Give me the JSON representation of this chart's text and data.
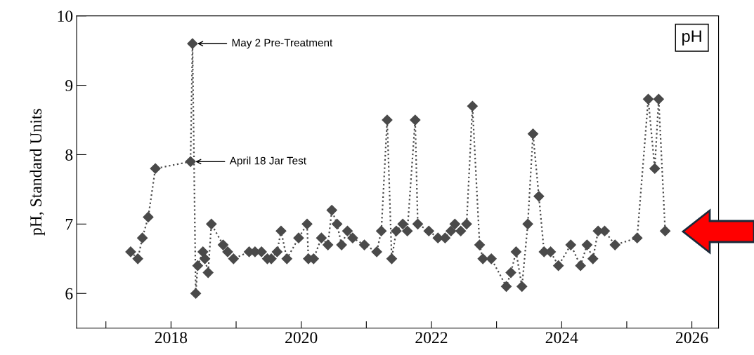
{
  "chart_data": {
    "type": "line",
    "ylabel": "pH, Standard Units",
    "annotations": [
      {
        "text": "May 2 Pre-Treatment",
        "x": 2018.33,
        "y": 9.6
      },
      {
        "text": "April 18 Jar Test",
        "x": 2018.3,
        "y": 7.9
      },
      "pH"
    ],
    "series": [
      {
        "color": "#4a4a4a",
        "x": [
          2017.38,
          2017.49,
          2017.56,
          2017.65,
          2017.76,
          2018.3,
          2018.33,
          2018.38,
          2018.41,
          2018.49,
          2018.52,
          2018.57,
          2018.62,
          2018.8,
          2018.87,
          2018.96,
          2019.2,
          2019.29,
          2019.39,
          2019.48,
          2019.54,
          2019.63,
          2019.69,
          2019.78,
          2019.96,
          2020.09,
          2020.11,
          2020.19,
          2020.31,
          2020.41,
          2020.47,
          2020.55,
          2020.62,
          2020.71,
          2020.79,
          2020.97,
          2021.16,
          2021.23,
          2021.32,
          2021.39,
          2021.46,
          2021.56,
          2021.63,
          2021.75,
          2021.79,
          2021.96,
          2022.1,
          2022.21,
          2022.3,
          2022.36,
          2022.45,
          2022.54,
          2022.63,
          2022.74,
          2022.79,
          2022.92,
          2023.15,
          2023.22,
          2023.3,
          2023.39,
          2023.48,
          2023.56,
          2023.65,
          2023.73,
          2023.83,
          2023.95,
          2024.14,
          2024.29,
          2024.39,
          2024.48,
          2024.56,
          2024.66,
          2024.82,
          2025.16,
          2025.33,
          2025.43,
          2025.49,
          2025.59
        ],
        "values": [
          6.6,
          6.5,
          6.8,
          7.1,
          7.8,
          7.9,
          9.6,
          6.0,
          6.4,
          6.6,
          6.5,
          6.3,
          7.0,
          6.7,
          6.6,
          6.5,
          6.6,
          6.6,
          6.6,
          6.5,
          6.5,
          6.6,
          6.9,
          6.5,
          6.8,
          7.0,
          6.5,
          6.5,
          6.8,
          6.7,
          7.2,
          7.0,
          6.7,
          6.9,
          6.8,
          6.7,
          6.6,
          6.9,
          8.5,
          6.5,
          6.9,
          7.0,
          6.9,
          8.5,
          7.0,
          6.9,
          6.8,
          6.8,
          6.9,
          7.0,
          6.9,
          7.0,
          8.7,
          6.7,
          6.5,
          6.5,
          6.1,
          6.3,
          6.6,
          6.1,
          7.0,
          8.3,
          7.4,
          6.6,
          6.6,
          6.4,
          6.7,
          6.4,
          6.7,
          6.5,
          6.9,
          6.9,
          6.7,
          6.8,
          8.8,
          7.8,
          8.8,
          6.9
        ]
      }
    ],
    "marker": "diamond",
    "line_style": "dotted",
    "grid": false,
    "legend": false,
    "xlim": [
      2016.55,
      2026.41
    ],
    "xticks": [
      {
        "value": 2017,
        "label": null
      },
      2018,
      {
        "value": 2019,
        "label": null
      },
      2020,
      {
        "value": 2021,
        "label": null
      },
      2022,
      {
        "value": 2023,
        "label": null
      },
      2024,
      {
        "value": 2025,
        "label": null
      },
      2026
    ],
    "ylim": [
      5.5,
      10
    ],
    "yticks": [
      6,
      7,
      8,
      9,
      10
    ]
  }
}
